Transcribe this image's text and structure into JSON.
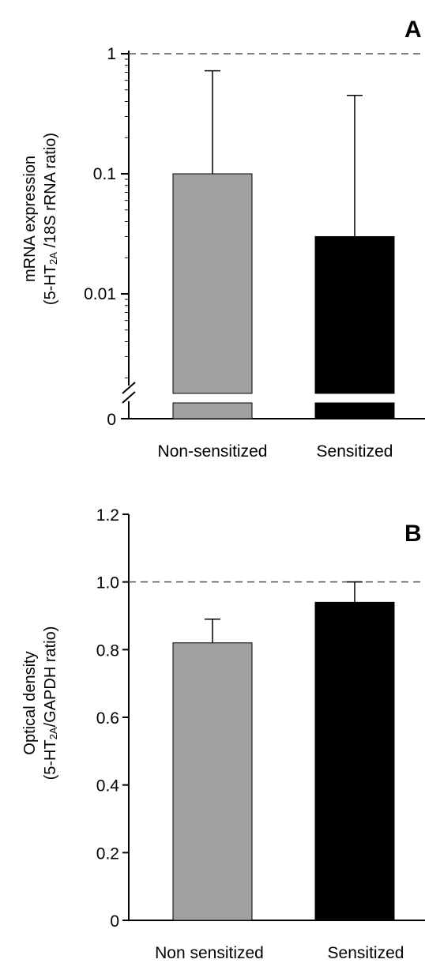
{
  "chart_data": [
    {
      "panel": "A",
      "type": "bar",
      "yscale": "log",
      "ylim": [
        0.001,
        1
      ],
      "categories": [
        "Non-sensitized",
        "Sensitized"
      ],
      "values": [
        0.1,
        0.03
      ],
      "error_upper": [
        0.72,
        0.45
      ],
      "colors": [
        "#a0a0a0",
        "#000000"
      ],
      "yticks": [
        {
          "value": 1,
          "label": "1"
        },
        {
          "value": 0.1,
          "label": "0.1"
        },
        {
          "value": 0.01,
          "label": "0.01"
        }
      ],
      "zero_label": "0",
      "reference_line": 1,
      "ylabel_line1": "mRNA expression",
      "ylabel_line2_pre": "(5-HT",
      "ylabel_line2_sub": "2A",
      "ylabel_line2_post": " /18S rRNA ratio)",
      "axis_break": true
    },
    {
      "panel": "B",
      "type": "bar",
      "ylim": [
        0,
        1.2
      ],
      "categories": [
        "Non sensitized",
        "Sensitized"
      ],
      "values": [
        0.82,
        0.94
      ],
      "error_upper": [
        0.89,
        1.0
      ],
      "colors": [
        "#a0a0a0",
        "#000000"
      ],
      "yticks": [
        {
          "value": 0,
          "label": "0"
        },
        {
          "value": 0.2,
          "label": "0.2"
        },
        {
          "value": 0.4,
          "label": "0.4"
        },
        {
          "value": 0.6,
          "label": "0.6"
        },
        {
          "value": 0.8,
          "label": "0.8"
        },
        {
          "value": 1.0,
          "label": "1.0"
        },
        {
          "value": 1.2,
          "label": "1.2"
        }
      ],
      "reference_line": 1.0,
      "ylabel_line1": "Optical density",
      "ylabel_line2_pre": "(5-HT",
      "ylabel_line2_sub": "2A",
      "ylabel_line2_post": "/GAPDH ratio)"
    }
  ]
}
